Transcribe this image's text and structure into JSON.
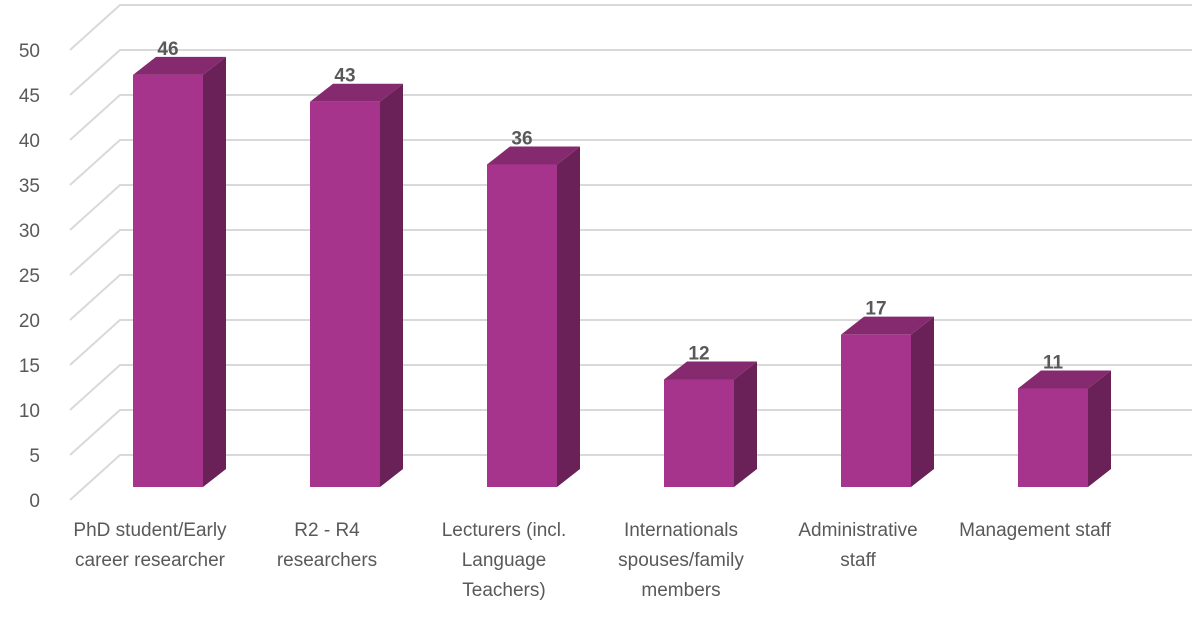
{
  "chart_data": {
    "type": "bar3d",
    "categories": [
      "PhD student/Early career researcher",
      "R2 - R4 researchers",
      "Lecturers (incl. Language Teachers)",
      "Internationals spouses/family members",
      "Administrative staff",
      "Management staff"
    ],
    "values": [
      46,
      43,
      36,
      12,
      17,
      11
    ],
    "color": "#a7348c",
    "ylim": [
      0,
      50
    ],
    "yticks": [
      0,
      5,
      10,
      15,
      20,
      25,
      30,
      35,
      40,
      45,
      50
    ],
    "grid": true
  }
}
